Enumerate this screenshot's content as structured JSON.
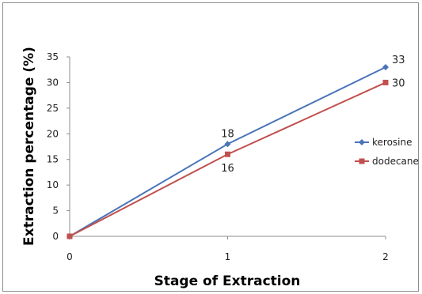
{
  "chart_data": {
    "type": "line",
    "title": "",
    "xlabel": "Stage of Extraction",
    "ylabel": "Extraction percentage (%)",
    "x": [
      0,
      1,
      2
    ],
    "xticks": [
      "0",
      "1",
      "2"
    ],
    "yticks": [
      "0",
      "5",
      "10",
      "15",
      "20",
      "25",
      "30",
      "35"
    ],
    "ylim": [
      0,
      35
    ],
    "grid": false,
    "legend_position": "right",
    "series": [
      {
        "name": "kerosine",
        "values": [
          0,
          18,
          33
        ],
        "labels": [
          "",
          "18",
          "33"
        ],
        "color": "#4a74b8",
        "marker": "diamond"
      },
      {
        "name": "dodecane",
        "values": [
          0,
          16,
          30
        ],
        "labels": [
          "",
          "16",
          "30"
        ],
        "color": "#c0504d",
        "marker": "square"
      }
    ]
  }
}
